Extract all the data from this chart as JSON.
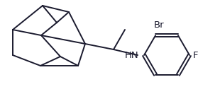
{
  "background": "#ffffff",
  "line_color": "#1a1a2e",
  "line_width": 1.4,
  "font_size": 9.5,
  "label_Br": "Br",
  "label_F": "F",
  "label_NH": "HN",
  "fig_width": 3.1,
  "fig_height": 1.5,
  "dpi": 100,
  "xlim": [
    0,
    310
  ],
  "ylim": [
    0,
    150
  ]
}
